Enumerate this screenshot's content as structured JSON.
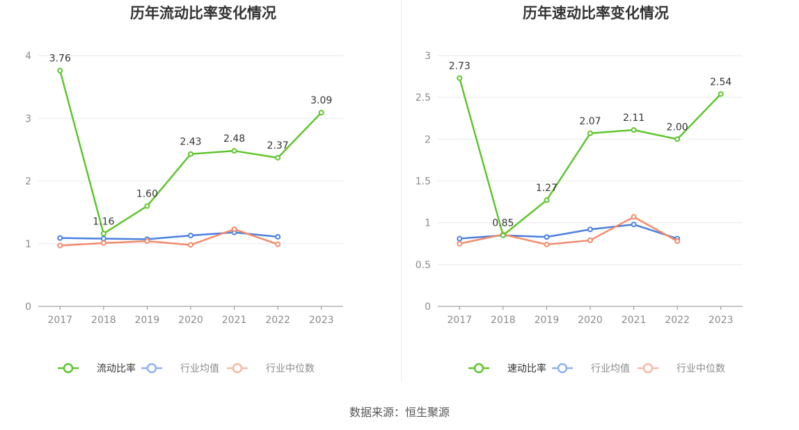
{
  "colors": {
    "primary": "#5ec52c",
    "avg": "#4a7fe0",
    "median": "#f48a6a",
    "legend_avg": "#8fb1ef",
    "legend_median": "#f7b9a5"
  },
  "source_text": "数据来源：恒生聚源",
  "chart_data": [
    {
      "type": "line",
      "title": "历年流动比率变化情况",
      "categories": [
        "2017",
        "2018",
        "2019",
        "2020",
        "2021",
        "2022",
        "2023"
      ],
      "ylim": [
        0,
        4
      ],
      "yticks": [
        "0",
        "1",
        "2",
        "3",
        "4"
      ],
      "grid": true,
      "legend_position": "bottom",
      "series": [
        {
          "name": "流动比率",
          "values": [
            3.76,
            1.16,
            1.6,
            2.43,
            2.48,
            2.37,
            3.09
          ],
          "labels": [
            "3.76",
            "1.16",
            "1.60",
            "2.43",
            "2.48",
            "2.37",
            "3.09"
          ],
          "color_key": "primary"
        },
        {
          "name": "行业均值",
          "values": [
            1.09,
            1.08,
            1.07,
            1.13,
            1.18,
            1.11,
            null
          ],
          "color_key": "avg"
        },
        {
          "name": "行业中位数",
          "values": [
            0.97,
            1.01,
            1.04,
            0.98,
            1.23,
            0.99,
            null
          ],
          "color_key": "median"
        }
      ]
    },
    {
      "type": "line",
      "title": "历年速动比率变化情况",
      "categories": [
        "2017",
        "2018",
        "2019",
        "2020",
        "2021",
        "2022",
        "2023"
      ],
      "ylim": [
        0,
        3
      ],
      "yticks": [
        "0",
        "0.5",
        "1",
        "1.5",
        "2",
        "2.5",
        "3"
      ],
      "grid": true,
      "legend_position": "bottom",
      "series": [
        {
          "name": "速动比率",
          "values": [
            2.73,
            0.85,
            1.27,
            2.07,
            2.11,
            2.0,
            2.54
          ],
          "labels": [
            "2.73",
            "0.85",
            "1.27",
            "2.07",
            "2.11",
            "2.00",
            "2.54"
          ],
          "color_key": "primary"
        },
        {
          "name": "行业均值",
          "values": [
            0.81,
            0.85,
            0.83,
            0.92,
            0.98,
            0.81,
            null
          ],
          "color_key": "avg"
        },
        {
          "name": "行业中位数",
          "values": [
            0.75,
            0.86,
            0.74,
            0.79,
            1.07,
            0.78,
            null
          ],
          "color_key": "median"
        }
      ]
    }
  ]
}
